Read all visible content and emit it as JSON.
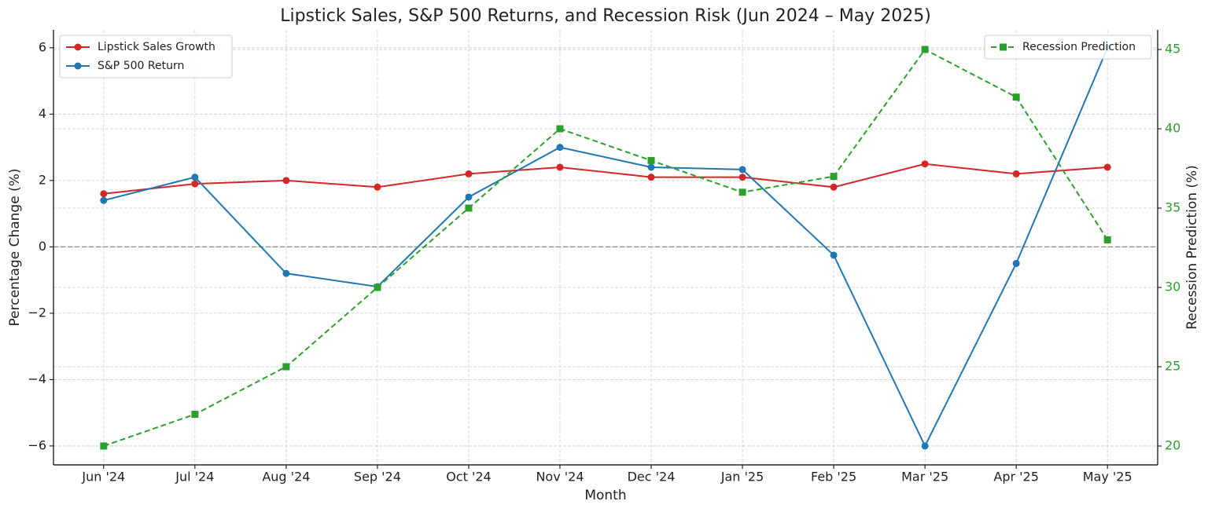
{
  "chart_data": {
    "type": "line",
    "title": "Lipstick Sales, S&P 500 Returns, and Recession Risk (Jun 2024 – May 2025)",
    "x_label": "Month",
    "y_label": "Percentage Change (%)",
    "y2_label": "Recession Prediction (%)",
    "categories": [
      "Jun '24",
      "Jul '24",
      "Aug '24",
      "Sep '24",
      "Oct '24",
      "Nov '24",
      "Dec '24",
      "Jan '25",
      "Feb '25",
      "Mar '25",
      "Apr '25",
      "May '25"
    ],
    "series": [
      {
        "name": "Lipstick Sales Growth",
        "color": "#d62728",
        "linestyle": "solid",
        "marker": "circle",
        "values": [
          1.6,
          1.9,
          2.0,
          1.8,
          2.2,
          2.4,
          2.1,
          2.1,
          1.8,
          2.5,
          2.2,
          2.4
        ]
      },
      {
        "name": "S&P 500 Return",
        "color": "#1f77b4",
        "linestyle": "solid",
        "marker": "circle",
        "values": [
          1.4,
          2.1,
          -0.8,
          -1.2,
          1.5,
          3.0,
          2.4,
          2.33,
          -0.25,
          -6.0,
          -0.5,
          6.0
        ]
      },
      {
        "name": "Recession Prediction",
        "color": "#2ca02c",
        "linestyle": "dashed",
        "marker": "square",
        "axis": "y2",
        "values": [
          20,
          22,
          25,
          30,
          35,
          40,
          38,
          36,
          37,
          45,
          42,
          33
        ]
      }
    ],
    "ylim": [
      -6.57,
      6.54
    ],
    "yticks": [
      {
        "value": -6,
        "label": "−6"
      },
      {
        "value": -4,
        "label": "−4"
      },
      {
        "value": -2,
        "label": "−2"
      },
      0,
      2,
      4,
      6
    ],
    "y2lim": [
      18.81,
      46.24
    ],
    "y2ticks": [
      20,
      25,
      30,
      35,
      40,
      45
    ],
    "y2tick_color": "#2ca02c",
    "hlines": [
      0
    ],
    "grid": true,
    "legend": "upper left",
    "legend2": "upper right"
  }
}
